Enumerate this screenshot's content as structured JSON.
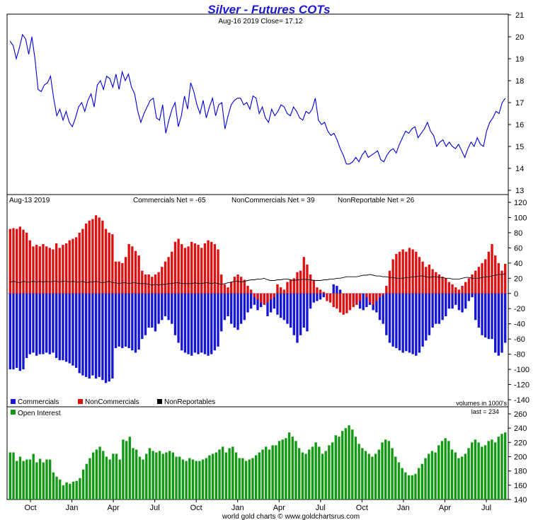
{
  "chart_data": {
    "title": "Silver - Futures COTs",
    "footer": "world gold charts © www.goldchartsrus.com",
    "x_labels": [
      "Oct",
      "Jan",
      "Apr",
      "Jul",
      "Oct",
      "Jan",
      "Apr",
      "Jul",
      "Oct",
      "Jan",
      "Apr",
      "Jul"
    ],
    "colors": {
      "title": "#1a1acc",
      "price": "#0000dd",
      "commercials": "#1515d8",
      "noncommercials": "#e01010",
      "nonreportables": "#000000",
      "open_interest": "#119911"
    },
    "price_panel": {
      "type": "line",
      "header": "Aug-16  2019   Close= 17.12",
      "ylim": [
        13,
        21
      ],
      "yticks": [
        "13",
        "14",
        "15",
        "16",
        "17",
        "18",
        "19",
        "20",
        "21"
      ],
      "series": [
        {
          "name": "Price",
          "values": [
            19.8,
            19.6,
            19.0,
            19.5,
            20.1,
            19.9,
            19.2,
            20.0,
            19.0,
            17.6,
            17.5,
            17.8,
            17.9,
            18.2,
            17.2,
            16.4,
            16.7,
            16.2,
            16.6,
            16.1,
            15.9,
            16.3,
            16.8,
            17.0,
            16.6,
            17.1,
            17.4,
            16.8,
            17.8,
            18.0,
            17.6,
            18.2,
            18.1,
            17.7,
            18.3,
            17.6,
            18.4,
            18.0,
            18.3,
            17.7,
            17.4,
            16.6,
            16.1,
            16.5,
            16.8,
            17.1,
            17.2,
            16.3,
            16.2,
            16.9,
            15.6,
            16.2,
            16.7,
            17.0,
            15.9,
            16.4,
            17.3,
            16.7,
            17.9,
            17.5,
            16.9,
            16.5,
            17.1,
            16.3,
            16.8,
            17.2,
            16.4,
            16.9,
            17.0,
            15.8,
            16.4,
            16.9,
            17.1,
            17.2,
            17.2,
            16.9,
            17.0,
            16.7,
            17.3,
            17.2,
            16.5,
            16.8,
            16.3,
            16.1,
            16.7,
            16.4,
            16.6,
            16.9,
            16.8,
            16.5,
            16.4,
            16.8,
            16.6,
            16.3,
            16.2,
            16.6,
            16.5,
            16.7,
            17.2,
            16.2,
            16.0,
            16.1,
            15.7,
            15.5,
            15.6,
            15.3,
            14.9,
            14.6,
            14.2,
            14.2,
            14.3,
            14.5,
            14.3,
            14.6,
            14.8,
            14.5,
            14.6,
            14.7,
            14.8,
            14.4,
            14.3,
            14.6,
            14.8,
            14.9,
            14.7,
            15.1,
            15.4,
            15.7,
            15.6,
            15.8,
            15.9,
            15.4,
            15.6,
            15.8,
            16.1,
            15.7,
            15.5,
            15.0,
            15.2,
            15.3,
            15.0,
            15.2,
            15.0,
            14.9,
            15.1,
            14.8,
            14.5,
            14.9,
            15.2,
            15.0,
            15.4,
            15.1,
            15.0,
            15.7,
            16.1,
            16.3,
            16.6,
            16.5,
            17.0,
            17.2
          ]
        }
      ]
    },
    "cot_panel": {
      "type": "bar",
      "header_date": "Aug-13  2019",
      "header_commercials": "Commercials Net = -65",
      "header_noncommercials": "NonCommercials Net = 39",
      "header_nonreportable": "NonReportable Net = 26",
      "ylim": [
        -140,
        120
      ],
      "yticks": [
        "-140",
        "-120",
        "-100",
        "-80",
        "-60",
        "-40",
        "-20",
        "0",
        "20",
        "40",
        "60",
        "80",
        "100",
        "120"
      ],
      "legend": [
        "Commercials",
        "NonCommercials",
        "NonReportables"
      ],
      "units_note": "volumes in 1000's",
      "series": [
        {
          "name": "Commercials",
          "values": [
            -100,
            -100,
            -98,
            -102,
            -100,
            -85,
            -80,
            -78,
            -82,
            -80,
            -80,
            -78,
            -80,
            -78,
            -85,
            -88,
            -88,
            -90,
            -92,
            -95,
            -98,
            -105,
            -108,
            -110,
            -112,
            -108,
            -112,
            -110,
            -114,
            -118,
            -116,
            -112,
            -72,
            -70,
            -72,
            -70,
            -72,
            -75,
            -78,
            -74,
            -60,
            -55,
            -45,
            -45,
            -50,
            -40,
            -35,
            -30,
            -35,
            -40,
            -55,
            -65,
            -75,
            -78,
            -80,
            -82,
            -78,
            -80,
            -78,
            -80,
            -82,
            -80,
            -75,
            -70,
            -50,
            -35,
            -30,
            -40,
            -45,
            -48,
            -40,
            -35,
            -25,
            -20,
            -15,
            -22,
            -18,
            -14,
            -30,
            -25,
            -20,
            -28,
            -32,
            -35,
            -40,
            -45,
            -55,
            -65,
            -55,
            -45,
            -50,
            -20,
            -12,
            -10,
            -8,
            -5,
            -2,
            -2,
            12,
            10,
            5,
            0,
            -5,
            -10,
            -12,
            -15,
            -20,
            -22,
            -18,
            -15,
            -22,
            -25,
            -35,
            -40,
            -55,
            -65,
            -70,
            -72,
            -75,
            -78,
            -76,
            -78,
            -80,
            -82,
            -78,
            -70,
            -62,
            -55,
            -45,
            -40,
            -40,
            -35,
            -30,
            -20,
            -20,
            -15,
            -22,
            -25,
            -20,
            -10,
            -5,
            -35,
            -45,
            -55,
            -58,
            -60,
            -60,
            -78,
            -82,
            -78,
            -65
          ]
        },
        {
          "name": "NonCommercials",
          "values": [
            85,
            86,
            85,
            88,
            84,
            80,
            70,
            62,
            64,
            62,
            65,
            62,
            60,
            58,
            66,
            60,
            64,
            66,
            70,
            72,
            74,
            80,
            85,
            92,
            96,
            98,
            103,
            100,
            96,
            85,
            80,
            78,
            42,
            42,
            40,
            48,
            65,
            62,
            56,
            50,
            30,
            25,
            25,
            22,
            25,
            28,
            35,
            42,
            48,
            55,
            68,
            72,
            65,
            60,
            62,
            68,
            66,
            64,
            60,
            66,
            70,
            68,
            65,
            58,
            25,
            12,
            8,
            15,
            22,
            25,
            22,
            18,
            10,
            5,
            -5,
            -8,
            -12,
            -15,
            -12,
            -8,
            -5,
            12,
            8,
            5,
            15,
            18,
            20,
            28,
            30,
            48,
            38,
            25,
            18,
            8,
            5,
            2,
            -10,
            -12,
            -18,
            -20,
            -25,
            -28,
            -26,
            -22,
            -18,
            -15,
            -10,
            0,
            -5,
            -12,
            -15,
            -10,
            -5,
            -2,
            10,
            30,
            45,
            52,
            55,
            58,
            55,
            60,
            58,
            55,
            48,
            42,
            35,
            38,
            32,
            28,
            25,
            22,
            20,
            15,
            12,
            8,
            5,
            10,
            15,
            20,
            25,
            30,
            35,
            40,
            45,
            55,
            65,
            50,
            40,
            30,
            39
          ]
        },
        {
          "name": "NonReportables",
          "values": [
            15,
            16,
            15,
            14,
            16,
            15,
            15,
            16,
            15,
            16,
            15,
            16,
            15,
            16,
            16,
            15,
            16,
            16,
            15,
            16,
            15,
            15,
            16,
            14,
            15,
            15,
            16,
            15,
            14,
            15,
            16,
            14,
            14,
            13,
            14,
            14,
            13,
            14,
            14,
            13,
            13,
            13,
            12,
            11,
            12,
            11,
            12,
            12,
            13,
            13,
            14,
            14,
            13,
            13,
            13,
            13,
            14,
            13,
            13,
            14,
            14,
            13,
            14,
            13,
            12,
            13,
            14,
            15,
            16,
            16,
            15,
            16,
            17,
            18,
            18,
            19,
            19,
            20,
            18,
            17,
            17,
            18,
            18,
            19,
            19,
            18,
            17,
            18,
            18,
            19,
            18,
            18,
            17,
            17,
            17,
            18,
            18,
            19,
            19,
            20,
            20,
            21,
            22,
            22,
            22,
            22,
            23,
            24,
            24,
            25,
            24,
            23,
            23,
            22,
            22,
            21,
            21,
            20,
            20,
            20,
            21,
            21,
            22,
            22,
            23,
            23,
            22,
            21,
            22,
            22,
            21,
            21,
            20,
            20,
            19,
            19,
            19,
            20,
            21,
            21,
            20,
            20,
            20,
            21,
            22,
            22,
            23,
            24,
            25,
            25,
            26
          ]
        }
      ]
    },
    "oi_panel": {
      "type": "bar",
      "legend": [
        "Open Interest"
      ],
      "note": "last = 234",
      "ylim": [
        140,
        260
      ],
      "yticks": [
        "140",
        "160",
        "180",
        "200",
        "220",
        "240",
        "260"
      ],
      "series": [
        {
          "name": "Open Interest",
          "values": [
            206,
            206,
            194,
            200,
            194,
            196,
            196,
            204,
            192,
            197,
            192,
            196,
            196,
            178,
            172,
            168,
            160,
            164,
            162,
            165,
            166,
            170,
            182,
            190,
            198,
            206,
            210,
            214,
            208,
            200,
            196,
            204,
            204,
            196,
            224,
            222,
            228,
            212,
            210,
            200,
            196,
            204,
            212,
            208,
            206,
            208,
            204,
            206,
            208,
            206,
            200,
            200,
            196,
            194,
            198,
            196,
            194,
            194,
            196,
            198,
            202,
            204,
            206,
            210,
            214,
            206,
            212,
            214,
            206,
            198,
            198,
            194,
            196,
            198,
            202,
            206,
            210,
            214,
            210,
            216,
            216,
            222,
            224,
            226,
            234,
            228,
            222,
            212,
            206,
            204,
            210,
            214,
            220,
            214,
            204,
            208,
            216,
            220,
            230,
            228,
            236,
            240,
            244,
            238,
            228,
            218,
            212,
            208,
            204,
            200,
            204,
            210,
            220,
            224,
            222,
            212,
            200,
            192,
            184,
            178,
            174,
            174,
            176,
            184,
            190,
            198,
            204,
            208,
            206,
            216,
            222,
            226,
            222,
            210,
            206,
            198,
            200,
            204,
            212,
            220,
            224,
            220,
            214,
            216,
            222,
            224,
            220,
            228,
            232,
            234
          ]
        }
      ]
    }
  }
}
